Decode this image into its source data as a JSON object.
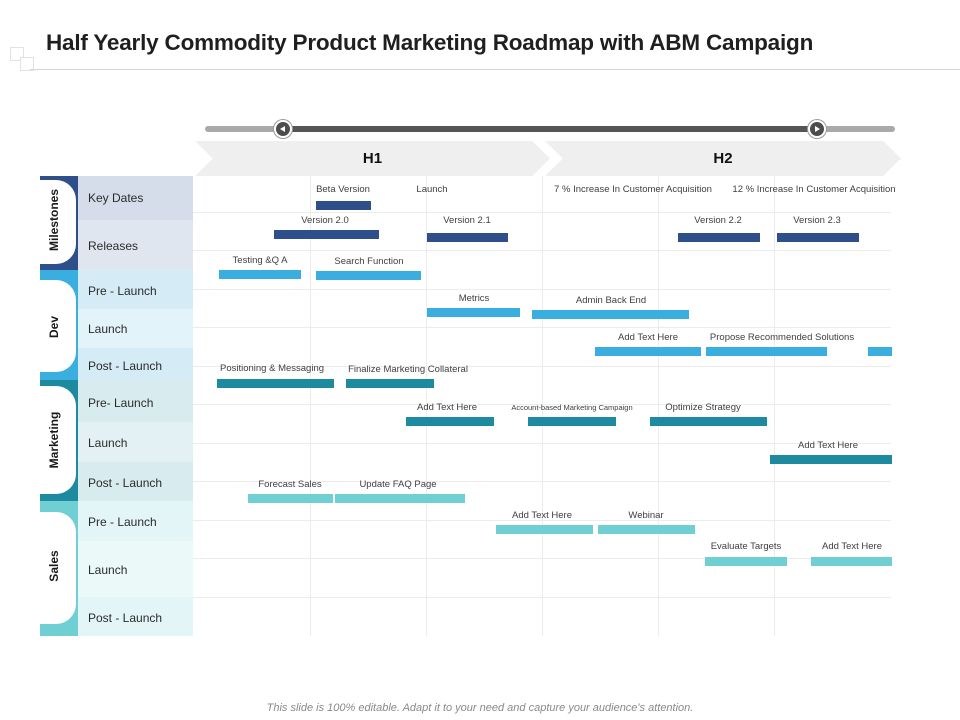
{
  "title": "Half Yearly Commodity Product Marketing Roadmap with ABM Campaign",
  "halves": [
    "H1",
    "H2"
  ],
  "groups": {
    "milestones": "Milestones",
    "dev": "Dev",
    "marketing": "Marketing",
    "sales": "Sales"
  },
  "rows": {
    "key_dates": "Key Dates",
    "releases": "Releases",
    "dev_pre": "Pre - Launch",
    "dev_launch": "Launch",
    "dev_post": "Post - Launch",
    "mkt_pre": "Pre- Launch",
    "mkt_launch": "Launch",
    "mkt_post": "Post - Launch",
    "sales_pre": "Pre - Launch",
    "sales_launch": "Launch",
    "sales_post": "Post - Launch"
  },
  "tasks": {
    "beta_version": "Beta Version",
    "launch": "Launch",
    "increase_7": "7 % Increase In Customer Acquisition",
    "increase_12": "12 % Increase In Customer Acquisition",
    "version_20": "Version 2.0",
    "version_21": "Version 2.1",
    "version_22": "Version 2.2",
    "version_23": "Version 2.3",
    "testing_qa": "Testing &Q A",
    "search_function": "Search Function",
    "metrics": "Metrics",
    "admin_back_end": "Admin Back End",
    "add_text_dev": "Add Text Here",
    "propose_solutions": "Propose Recommended Solutions",
    "positioning": "Positioning & Messaging",
    "finalize_collateral": "Finalize Marketing Collateral",
    "add_text_mkt_launch": "Add Text Here",
    "abm_campaign": "Account-based  Marketing  Campaign",
    "optimize_strategy": "Optimize Strategy",
    "add_text_mkt_post": "Add Text Here",
    "forecast_sales": "Forecast Sales",
    "update_faq": "Update FAQ Page",
    "add_text_sales_pre": "Add Text Here",
    "webinar": "Webinar",
    "evaluate_targets": "Evaluate Targets",
    "add_text_sales_launch": "Add Text Here"
  },
  "colors": {
    "navy": "#2e4f8a",
    "blue": "#3aafdf",
    "teal": "#1d8aa0",
    "aqua": "#6fcfd3",
    "milestones_group": "#2e4f8a",
    "dev_group": "#3aafdf",
    "marketing_group": "#1d8aa0",
    "sales_group": "#6fcfd3"
  },
  "footer": "This slide is 100% editable. Adapt it to your need and capture your audience's attention."
}
